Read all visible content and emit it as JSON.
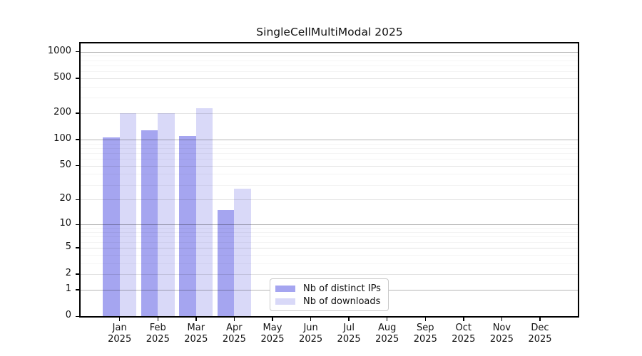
{
  "figure": {
    "background": "#ffffff",
    "axis_color": "#000000"
  },
  "chart_data": {
    "type": "bar",
    "title": "SingleCellMultiModal 2025",
    "categories": [
      "Jan",
      "Feb",
      "Mar",
      "Apr",
      "May",
      "Jun",
      "Jul",
      "Aug",
      "Sep",
      "Oct",
      "Nov",
      "Dec"
    ],
    "x_year_label": "2025",
    "series": [
      {
        "name": "Nb of distinct IPs",
        "color": "#a5a5f0",
        "values": [
          105,
          127,
          110,
          15,
          0,
          0,
          0,
          0,
          0,
          0,
          0,
          0
        ]
      },
      {
        "name": "Nb of downloads",
        "color": "#d9d9f8",
        "values": [
          200,
          200,
          226,
          27,
          0,
          0,
          0,
          0,
          0,
          0,
          0,
          0
        ]
      }
    ],
    "y_ticks": [
      0,
      1,
      2,
      5,
      10,
      20,
      50,
      100,
      200,
      500,
      1000
    ],
    "y_scale": "log10(1+y)",
    "ylim": [
      0,
      1230
    ],
    "xlabel": "",
    "ylabel": "",
    "grid": "horizontal",
    "legend_position": "lower-center-inside"
  }
}
